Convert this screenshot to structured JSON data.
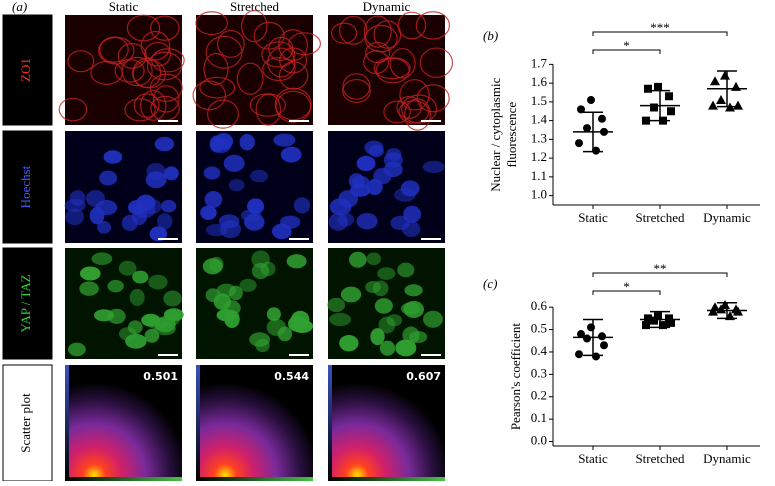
{
  "panel_a": {
    "label": "(a)",
    "columns": [
      "Static",
      "Stretched",
      "Dynamic"
    ],
    "rows": [
      "ZO1",
      "Hoechst",
      "YAP / TAZ",
      "Scatter plot"
    ],
    "scatter_values": [
      0.501,
      0.544,
      0.607
    ]
  },
  "chart_data": [
    {
      "type": "scatter",
      "panel": "(b)",
      "ylabel": [
        "Nuclear / cytoplasmic",
        "fluorescence"
      ],
      "categories": [
        "Static",
        "Stretched",
        "Dynamic"
      ],
      "ylim": [
        0.95,
        1.75
      ],
      "yticks": [
        {
          "value": 1.0,
          "label": "1.0"
        },
        1.1,
        1.2,
        1.3,
        1.4,
        1.5,
        1.6,
        1.7
      ],
      "series": [
        {
          "name": "Static",
          "marker": "circle",
          "color": "#000000",
          "values": [
            1.51,
            1.46,
            1.41,
            1.36,
            1.34,
            1.28,
            1.24
          ],
          "mean": 1.34,
          "sd": 0.105
        },
        {
          "name": "Stretched",
          "marker": "square",
          "color": "#000000",
          "values": [
            1.58,
            1.57,
            1.53,
            1.47,
            1.45,
            1.4,
            1.4
          ],
          "mean": 1.48,
          "sd": 0.08
        },
        {
          "name": "Dynamic",
          "marker": "triangle",
          "color": "#000000",
          "values": [
            1.64,
            1.61,
            1.58,
            1.51,
            1.48,
            1.48,
            1.47
          ],
          "mean": 1.57,
          "sd": 0.095
        }
      ],
      "annotations": [
        {
          "text": "*",
          "between": [
            "Static",
            "Stretched"
          ]
        },
        {
          "text": "***",
          "between": [
            "Static",
            "Dynamic"
          ]
        }
      ]
    },
    {
      "type": "scatter",
      "panel": "(c)",
      "ylabel": [
        "Pearson's coefficient"
      ],
      "categories": [
        "Static",
        "Stretched",
        "Dynamic"
      ],
      "ylim": [
        -0.02,
        0.65
      ],
      "yticks": [
        {
          "value": 0,
          "label": "0.0"
        },
        0.1,
        0.2,
        0.3,
        0.4,
        0.5,
        0.6
      ],
      "series": [
        {
          "name": "Static",
          "marker": "circle",
          "color": "#000000",
          "values": [
            0.51,
            0.48,
            0.47,
            0.46,
            0.43,
            0.39,
            0.38
          ],
          "mean": 0.465,
          "sd": 0.08
        },
        {
          "name": "Stretched",
          "marker": "square",
          "color": "#000000",
          "values": [
            0.56,
            0.55,
            0.55,
            0.54,
            0.53,
            0.52,
            0.52
          ],
          "mean": 0.545,
          "sd": 0.035
        },
        {
          "name": "Dynamic",
          "marker": "triangle",
          "color": "#000000",
          "values": [
            0.61,
            0.6,
            0.59,
            0.59,
            0.58,
            0.58,
            0.56
          ],
          "mean": 0.585,
          "sd": 0.035
        }
      ],
      "annotations": [
        {
          "text": "*",
          "between": [
            "Static",
            "Stretched"
          ]
        },
        {
          "text": "**",
          "between": [
            "Static",
            "Dynamic"
          ]
        }
      ]
    }
  ]
}
